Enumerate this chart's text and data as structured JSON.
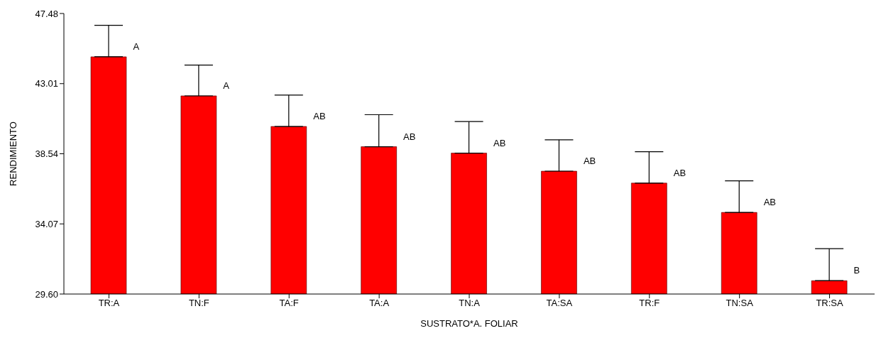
{
  "chart_data": {
    "type": "bar",
    "xlabel": "SUSTRATO*A. FOLIAR",
    "ylabel": "RENDIMIENTO",
    "categories": [
      "TR:A",
      "TN:F",
      "TA:F",
      "TA:A",
      "TN:A",
      "TA:SA",
      "TR:F",
      "TN:SA",
      "TR:SA"
    ],
    "values": [
      44.72,
      42.23,
      40.28,
      38.99,
      38.58,
      37.43,
      36.67,
      34.8,
      30.45
    ],
    "errors": [
      [
        44.72,
        46.73
      ],
      [
        42.23,
        44.19
      ],
      [
        40.28,
        42.28
      ],
      [
        38.99,
        41.03
      ],
      [
        38.58,
        40.59
      ],
      [
        37.43,
        39.43
      ],
      [
        36.67,
        38.67
      ],
      [
        34.8,
        36.81
      ],
      [
        30.45,
        32.49
      ]
    ],
    "color": "#ff0000",
    "ylim": [
      29.6,
      47.48
    ],
    "yticks": [
      {
        "value": 29.6,
        "label": "29.60"
      },
      34.07,
      38.54,
      43.01,
      47.48
    ],
    "grid": false,
    "legend": false,
    "annotations": [
      {
        "text": "A",
        "x": "TR:A",
        "y": 44.72
      },
      {
        "text": "A",
        "x": "TN:F",
        "y": 42.23
      },
      {
        "text": "AB",
        "x": "TA:F",
        "y": 40.28
      },
      {
        "text": "AB",
        "x": "TA:A",
        "y": 38.99
      },
      {
        "text": "AB",
        "x": "TN:A",
        "y": 38.58
      },
      {
        "text": "AB",
        "x": "TA:SA",
        "y": 37.43
      },
      {
        "text": "AB",
        "x": "TR:F",
        "y": 36.67
      },
      {
        "text": "AB",
        "x": "TN:SA",
        "y": 34.8
      },
      {
        "text": "B",
        "x": "TR:SA",
        "y": 30.45
      }
    ]
  }
}
